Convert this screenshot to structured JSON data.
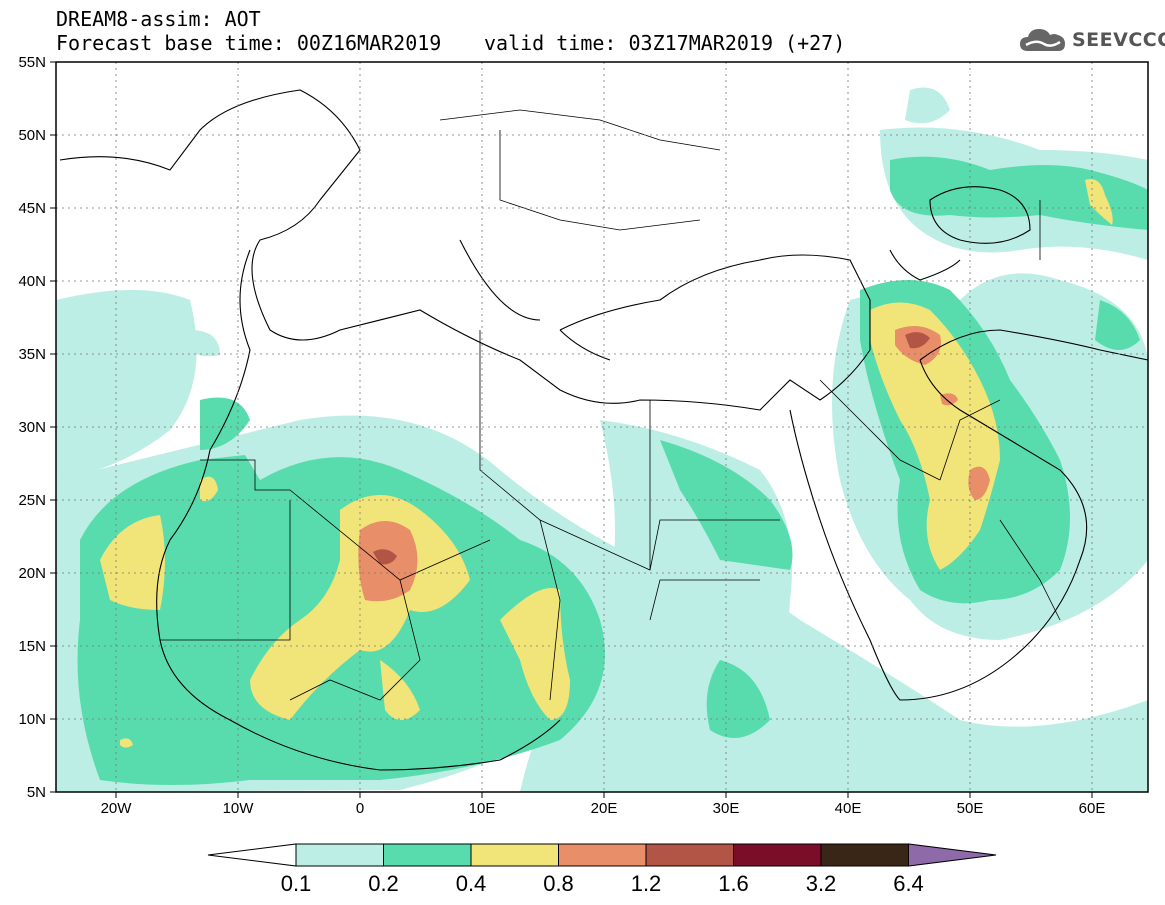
{
  "header": {
    "title": "DREAM8-assim: AOT",
    "base_time": "Forecast base time: 00Z16MAR2019",
    "valid_time": "valid time: 03Z17MAR2019 (+27)"
  },
  "logo": {
    "text": "SEEVCCC",
    "icon": "cloud-icon"
  },
  "map": {
    "lat_labels": [
      "55N",
      "50N",
      "45N",
      "40N",
      "35N",
      "30N",
      "25N",
      "20N",
      "15N",
      "10N",
      "5N"
    ],
    "lon_labels": [
      "20W",
      "10W",
      "0",
      "10E",
      "20E",
      "30E",
      "40E",
      "50E",
      "60E"
    ]
  },
  "colorbar": {
    "levels": [
      "0.1",
      "0.2",
      "0.4",
      "0.8",
      "1.2",
      "1.6",
      "3.2",
      "6.4"
    ],
    "colors": [
      "#ffffff",
      "#bdeee5",
      "#58dcae",
      "#f1e479",
      "#e88e68",
      "#b25546",
      "#7a0d28",
      "#3a2616",
      "#8e6aa8"
    ]
  }
}
